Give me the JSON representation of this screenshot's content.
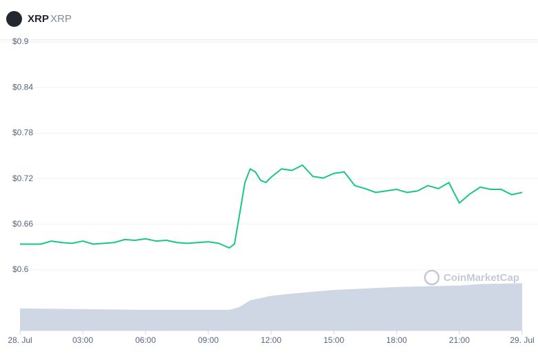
{
  "header": {
    "symbol": "XRP",
    "name": "XRP"
  },
  "chart_data": {
    "type": "line",
    "color": "#16c784",
    "watermark": "CoinMarketCap",
    "x": [
      0,
      1,
      1.5,
      2,
      2.5,
      3,
      3.5,
      4,
      4.5,
      5,
      5.5,
      6,
      6.5,
      7,
      7.5,
      8,
      8.5,
      9,
      9.5,
      10,
      10.25,
      10.5,
      10.75,
      11,
      11.25,
      11.5,
      11.75,
      12,
      12.5,
      13,
      13.5,
      14,
      14.5,
      15,
      15.5,
      16,
      16.5,
      17,
      17.5,
      18,
      18.5,
      19,
      19.5,
      20,
      20.5,
      21,
      21.5,
      22,
      22.5,
      23,
      23.5,
      24
    ],
    "values": [
      0.634,
      0.634,
      0.638,
      0.636,
      0.635,
      0.638,
      0.634,
      0.635,
      0.636,
      0.64,
      0.639,
      0.641,
      0.638,
      0.639,
      0.636,
      0.635,
      0.636,
      0.637,
      0.635,
      0.629,
      0.634,
      0.674,
      0.715,
      0.733,
      0.729,
      0.718,
      0.715,
      0.722,
      0.733,
      0.731,
      0.738,
      0.723,
      0.721,
      0.727,
      0.729,
      0.711,
      0.707,
      0.702,
      0.704,
      0.706,
      0.702,
      0.704,
      0.711,
      0.707,
      0.715,
      0.688,
      0.7,
      0.709,
      0.706,
      0.706,
      0.699,
      0.702
    ],
    "xlim": [
      0,
      24
    ],
    "xticks": [
      {
        "value": 0,
        "label": "28. Jul"
      },
      {
        "value": 3,
        "label": "03:00"
      },
      {
        "value": 6,
        "label": "06:00"
      },
      {
        "value": 9,
        "label": "09:00"
      },
      {
        "value": 12,
        "label": "12:00"
      },
      {
        "value": 15,
        "label": "15:00"
      },
      {
        "value": 18,
        "label": "18:00"
      },
      {
        "value": 21,
        "label": "21:00"
      },
      {
        "value": 24,
        "label": "29. Jul"
      }
    ],
    "ylim": [
      0.6,
      0.9
    ],
    "yticks": [
      {
        "value": 0.6,
        "label": "$0.6"
      },
      {
        "value": 0.66,
        "label": "$0.66"
      },
      {
        "value": 0.72,
        "label": "$0.72"
      },
      {
        "value": 0.78,
        "label": "$0.78"
      },
      {
        "value": 0.84,
        "label": "$0.84"
      },
      {
        "value": 0.9,
        "label": "$0.9"
      }
    ],
    "grid": true,
    "volume": {
      "color": "#cfd6e4",
      "x": [
        0,
        3,
        6,
        9,
        10,
        10.5,
        11,
        12,
        13,
        15,
        18,
        21,
        22,
        24
      ],
      "values": [
        30,
        29,
        28,
        28,
        28,
        32,
        41,
        47,
        50,
        55,
        59,
        61,
        63,
        64
      ],
      "lim": [
        0,
        70
      ]
    }
  }
}
